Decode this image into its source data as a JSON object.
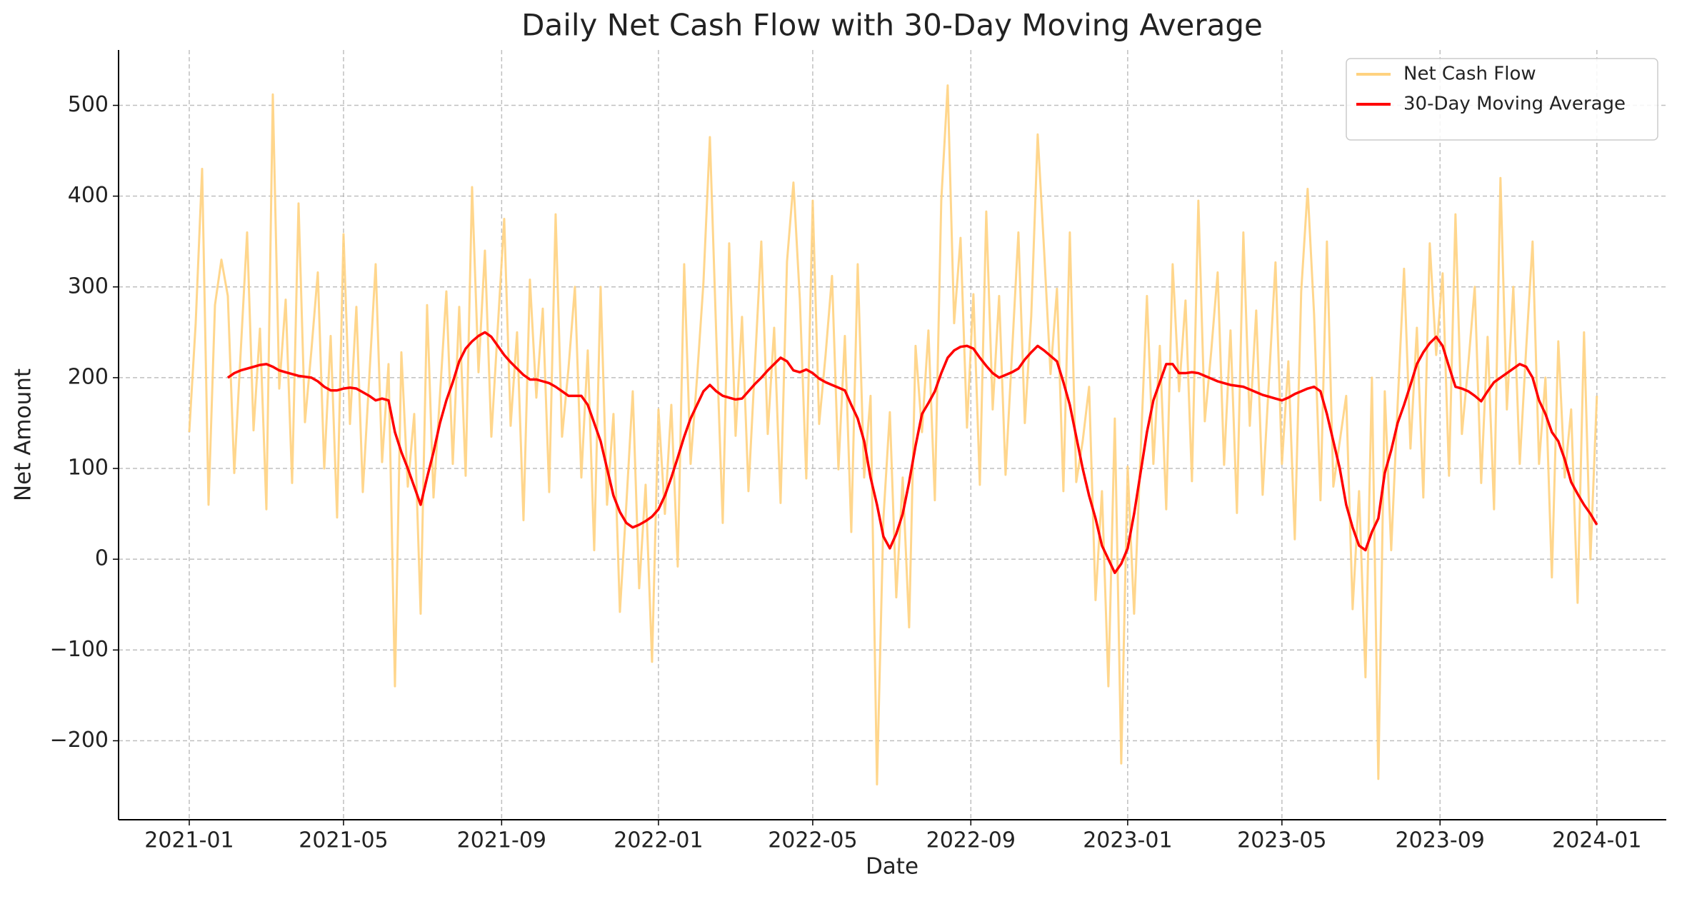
{
  "chart_data": {
    "type": "line",
    "title": "Daily Net Cash Flow with 30-Day Moving Average",
    "xlabel": "Date",
    "ylabel": "Net Amount",
    "legend": "upper right",
    "grid": true,
    "xlim": [
      -55,
      1149
    ],
    "xticks": [
      {
        "value": 0,
        "label": "2021-01"
      },
      {
        "value": 120,
        "label": "2021-05"
      },
      {
        "value": 243,
        "label": "2021-09"
      },
      {
        "value": 365,
        "label": "2022-01"
      },
      {
        "value": 485,
        "label": "2022-05"
      },
      {
        "value": 608,
        "label": "2022-09"
      },
      {
        "value": 730,
        "label": "2023-01"
      },
      {
        "value": 850,
        "label": "2023-05"
      },
      {
        "value": 973,
        "label": "2023-09"
      },
      {
        "value": 1095,
        "label": "2024-01"
      }
    ],
    "ylim": [
      -287,
      561
    ],
    "yticks": [
      {
        "value": -200,
        "label": "−200"
      },
      {
        "value": -100,
        "label": "−100"
      },
      0,
      100,
      200,
      300,
      400,
      500
    ],
    "x": [
      0,
      5,
      10,
      15,
      20,
      25,
      30,
      35,
      40,
      45,
      50,
      55,
      60,
      65,
      70,
      75,
      80,
      85,
      90,
      95,
      100,
      105,
      110,
      115,
      120,
      125,
      130,
      135,
      140,
      145,
      150,
      155,
      160,
      165,
      170,
      175,
      180,
      185,
      190,
      195,
      200,
      205,
      210,
      215,
      220,
      225,
      230,
      235,
      240,
      245,
      250,
      255,
      260,
      265,
      270,
      275,
      280,
      285,
      290,
      295,
      300,
      305,
      310,
      315,
      320,
      325,
      330,
      335,
      340,
      345,
      350,
      355,
      360,
      365,
      370,
      375,
      380,
      385,
      390,
      395,
      400,
      405,
      410,
      415,
      420,
      425,
      430,
      435,
      440,
      445,
      450,
      455,
      460,
      465,
      470,
      475,
      480,
      485,
      490,
      495,
      500,
      505,
      510,
      515,
      520,
      525,
      530,
      535,
      540,
      545,
      550,
      555,
      560,
      565,
      570,
      575,
      580,
      585,
      590,
      595,
      600,
      605,
      610,
      615,
      620,
      625,
      630,
      635,
      640,
      645,
      650,
      655,
      660,
      665,
      670,
      675,
      680,
      685,
      690,
      695,
      700,
      705,
      710,
      715,
      720,
      725,
      730,
      735,
      740,
      745,
      750,
      755,
      760,
      765,
      770,
      775,
      780,
      785,
      790,
      795,
      800,
      805,
      810,
      815,
      820,
      825,
      830,
      835,
      840,
      845,
      850,
      855,
      860,
      865,
      870,
      875,
      880,
      885,
      890,
      895,
      900,
      905,
      910,
      915,
      920,
      925,
      930,
      935,
      940,
      945,
      950,
      955,
      960,
      965,
      970,
      975,
      980,
      985,
      990,
      995,
      1000,
      1005,
      1010,
      1015,
      1020,
      1025,
      1030,
      1035,
      1040,
      1045,
      1050,
      1055,
      1060,
      1065,
      1070,
      1075,
      1080,
      1085,
      1090,
      1095
    ],
    "series": [
      {
        "name": "Net Cash Flow",
        "color": "#ffd27f",
        "values": [
          140,
          260,
          430,
          60,
          280,
          330,
          290,
          95,
          228,
          360,
          142,
          254,
          55,
          512,
          188,
          286,
          84,
          392,
          151,
          230,
          316,
          100,
          246,
          46,
          358,
          149,
          278,
          74,
          200,
          325,
          107,
          215,
          -140,
          228,
          80,
          160,
          -60,
          280,
          68,
          180,
          295,
          105,
          278,
          92,
          410,
          206,
          340,
          135,
          255,
          375,
          147,
          250,
          43,
          308,
          178,
          276,
          74,
          380,
          135,
          210,
          300,
          90,
          230,
          10,
          300,
          60,
          160,
          -58,
          60,
          185,
          -32,
          82,
          -113,
          165,
          50,
          170,
          -8,
          325,
          105,
          200,
          305,
          465,
          245,
          40,
          348,
          136,
          267,
          75,
          213,
          350,
          138,
          255,
          62,
          328,
          415,
          286,
          89,
          395,
          149,
          225,
          312,
          99,
          246,
          30,
          325,
          90,
          180,
          -248,
          45,
          162,
          -42,
          90,
          -75,
          235,
          140,
          252,
          65,
          395,
          522,
          260,
          354,
          145,
          292,
          82,
          383,
          165,
          290,
          93,
          226,
          360,
          150,
          268,
          468,
          340,
          204,
          298,
          75,
          360,
          85,
          130,
          190,
          -45,
          75,
          -140,
          155,
          -225,
          102,
          -60,
          115,
          290,
          105,
          235,
          55,
          325,
          185,
          285,
          86,
          395,
          152,
          229,
          316,
          104,
          252,
          51,
          360,
          147,
          274,
          71,
          199,
          327,
          105,
          218,
          22,
          295,
          408,
          270,
          65,
          350,
          80,
          130,
          180,
          -55,
          75,
          -130,
          200,
          -242,
          185,
          10,
          170,
          320,
          122,
          255,
          68,
          348,
          225,
          315,
          92,
          380,
          138,
          215,
          300,
          84,
          245,
          55,
          420,
          165,
          300,
          105,
          232,
          350,
          105,
          200,
          -20,
          240,
          90,
          165,
          -48,
          250,
          0,
          180
        ]
      },
      {
        "name": "30-Day Moving Average",
        "color": "#ff0000",
        "values": [
          null,
          null,
          null,
          null,
          null,
          null,
          200,
          205,
          208,
          210,
          212,
          214,
          215,
          212,
          208,
          206,
          204,
          202,
          201,
          200,
          196,
          190,
          186,
          186,
          188,
          189,
          188,
          184,
          180,
          175,
          177,
          175,
          140,
          118,
          100,
          80,
          60,
          90,
          118,
          150,
          175,
          195,
          218,
          232,
          240,
          246,
          250,
          245,
          235,
          225,
          217,
          210,
          203,
          198,
          198,
          196,
          194,
          190,
          185,
          180,
          180,
          180,
          170,
          150,
          130,
          100,
          70,
          52,
          40,
          35,
          38,
          42,
          47,
          55,
          70,
          90,
          112,
          135,
          155,
          170,
          185,
          192,
          185,
          180,
          178,
          176,
          177,
          185,
          193,
          200,
          208,
          215,
          222,
          218,
          208,
          206,
          209,
          205,
          199,
          195,
          192,
          189,
          186,
          170,
          155,
          130,
          90,
          60,
          25,
          12,
          28,
          50,
          85,
          125,
          160,
          172,
          185,
          205,
          222,
          230,
          234,
          235,
          232,
          222,
          213,
          205,
          200,
          203,
          206,
          210,
          220,
          228,
          235,
          230,
          224,
          218,
          195,
          170,
          135,
          100,
          70,
          45,
          15,
          0,
          -15,
          -5,
          12,
          50,
          95,
          140,
          175,
          195,
          215,
          215,
          205,
          205,
          206,
          205,
          202,
          199,
          196,
          194,
          192,
          191,
          190,
          187,
          184,
          181,
          179,
          177,
          175,
          178,
          182,
          185,
          188,
          190,
          185,
          160,
          130,
          100,
          60,
          35,
          15,
          10,
          30,
          45,
          95,
          120,
          150,
          170,
          192,
          215,
          228,
          238,
          245,
          235,
          212,
          190,
          188,
          185,
          180,
          174,
          185,
          195,
          200,
          205,
          210,
          215,
          212,
          200,
          175,
          160,
          140,
          130,
          110,
          85,
          72,
          60,
          50,
          38
        ]
      }
    ]
  }
}
